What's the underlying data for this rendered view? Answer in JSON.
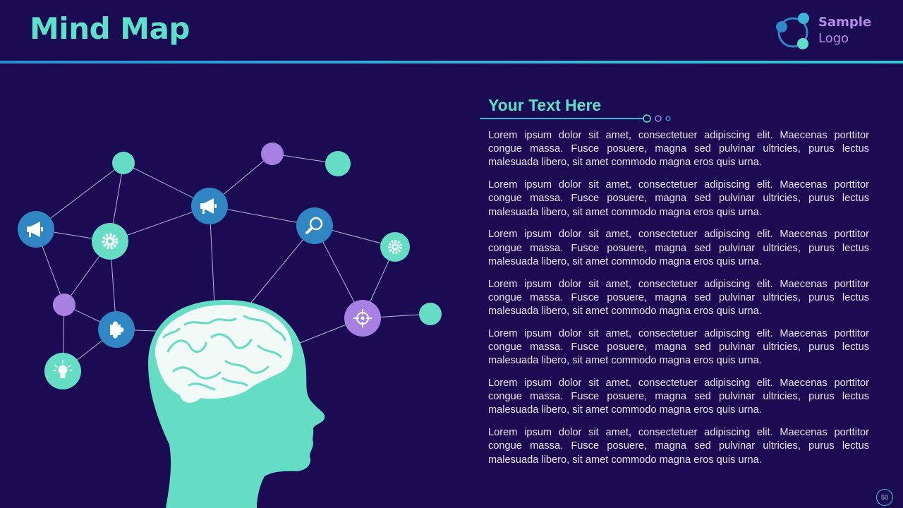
{
  "header": {
    "title": "Mind Map",
    "logo": {
      "line1": "Sample",
      "line2": "Logo"
    }
  },
  "content": {
    "heading": "Your Text Here",
    "paragraphs": [
      "Lorem ipsum dolor sit amet, consectetuer adipiscing elit. Maecenas porttitor congue massa. Fusce posuere, magna sed pulvinar ultricies, purus lectus malesuada libero, sit amet commodo magna eros quis urna.",
      "Lorem ipsum dolor sit amet, consectetuer adipiscing elit. Maecenas porttitor congue massa. Fusce posuere, magna sed pulvinar ultricies, purus lectus malesuada libero, sit amet commodo magna eros quis urna.",
      "Lorem ipsum dolor sit amet, consectetuer adipiscing elit. Maecenas porttitor congue massa. Fusce posuere, magna sed pulvinar ultricies, purus lectus malesuada libero, sit amet commodo magna eros quis urna.",
      "Lorem ipsum dolor sit amet, consectetuer adipiscing elit. Maecenas porttitor congue massa. Fusce posuere, magna sed pulvinar ultricies, purus lectus malesuada libero, sit amet commodo magna eros quis urna.",
      "Lorem ipsum dolor sit amet, consectetuer adipiscing elit. Maecenas porttitor congue massa. Fusce posuere, magna sed pulvinar ultricies, purus lectus malesuada libero, sit amet commodo magna eros quis urna.",
      "Lorem ipsum dolor sit amet, consectetuer adipiscing elit. Maecenas porttitor congue massa. Fusce posuere, magna sed pulvinar ultricies, purus lectus malesuada libero, sit amet commodo magna eros quis urna.",
      "Lorem ipsum dolor sit amet, consectetuer adipiscing elit. Maecenas porttitor congue massa. Fusce posuere, magna sed pulvinar ultricies, purus lectus malesuada libero, sit amet commodo magna eros quis urna."
    ]
  },
  "footer": {
    "page_number": "50"
  },
  "mind_map": {
    "icons": [
      "megaphone-icon",
      "gear-icon",
      "megaphone-icon",
      "search-icon",
      "gear-icon",
      "target-icon",
      "puzzle-icon",
      "lightbulb-icon"
    ],
    "colors": {
      "teal": "#65dcc4",
      "blue": "#2f86c3",
      "purple": "#a681e2",
      "background": "#1a0b52"
    }
  }
}
